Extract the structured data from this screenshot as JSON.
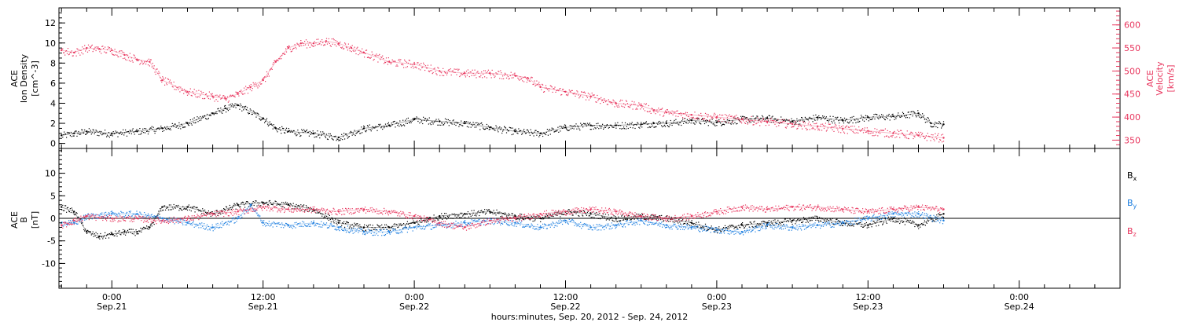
{
  "colors": {
    "black": "#000000",
    "pink": "#e8365e",
    "blue": "#1e7fe0",
    "background": "#ffffff"
  },
  "x_axis": {
    "label": "hours:minutes, Sep. 20, 2012 - Sep. 24, 2012",
    "range_hours": [
      19.8,
      104.0
    ],
    "ticks": [
      {
        "hours": 24,
        "time": "0:00",
        "date": "Sep.21"
      },
      {
        "hours": 36,
        "time": "12:00",
        "date": "Sep.21"
      },
      {
        "hours": 48,
        "time": "0:00",
        "date": "Sep.22"
      },
      {
        "hours": 60,
        "time": "12:00",
        "date": "Sep.22"
      },
      {
        "hours": 72,
        "time": "0:00",
        "date": "Sep.23"
      },
      {
        "hours": 84,
        "time": "12:00",
        "date": "Sep.23"
      },
      {
        "hours": 96,
        "time": "0:00",
        "date": "Sep.24"
      }
    ]
  },
  "chart_data": [
    {
      "type": "scatter",
      "panel": "top",
      "left_axis": {
        "label_lines": [
          "ACE",
          "Ion Density",
          "[cm^-3]"
        ],
        "ylim": [
          -0.5,
          13.5
        ],
        "ticks": [
          0,
          2,
          4,
          6,
          8,
          10,
          12
        ]
      },
      "right_axis": {
        "label_lines": [
          "ACE",
          "Velocity",
          "[km/s]"
        ],
        "ylim": [
          332,
          637
        ],
        "ticks": [
          350,
          400,
          450,
          500,
          550,
          600
        ]
      },
      "series": [
        {
          "axis": "left",
          "color": "#000000",
          "x_hours": [
            20.0,
            21.0,
            22.0,
            24.0,
            26.0,
            28.0,
            30.0,
            32.0,
            33.0,
            34.0,
            36.0,
            37.0,
            38.0,
            40.0,
            42.0,
            44.0,
            46.0,
            48.0,
            50.0,
            52.0,
            54.0,
            56.0,
            58.0,
            60.0,
            62.0,
            64.0,
            66.0,
            67.0,
            68.0,
            70.0,
            72.0,
            74.0,
            76.0,
            78.0,
            80.0,
            82.0,
            84.0,
            86.0,
            88.0,
            89.0,
            90.0
          ],
          "values": [
            0.8,
            1.0,
            1.2,
            1.0,
            1.2,
            1.5,
            2.0,
            3.0,
            3.5,
            3.8,
            2.5,
            1.5,
            1.2,
            1.0,
            0.6,
            1.5,
            1.8,
            2.4,
            2.2,
            2.0,
            1.6,
            1.2,
            1.0,
            1.6,
            1.8,
            1.8,
            1.9,
            2.0,
            2.0,
            2.3,
            2.1,
            2.4,
            2.5,
            2.2,
            2.6,
            2.3,
            2.6,
            2.7,
            3.0,
            2.0,
            1.9
          ]
        },
        {
          "axis": "right",
          "color": "#e8365e",
          "x_hours": [
            20.0,
            21.0,
            22.0,
            23.0,
            24.0,
            25.0,
            26.0,
            27.0,
            28.0,
            30.0,
            32.0,
            33.0,
            34.0,
            35.0,
            36.0,
            37.0,
            38.0,
            39.0,
            40.0,
            41.0,
            42.0,
            43.0,
            44.0,
            46.0,
            48.0,
            50.0,
            52.0,
            54.0,
            56.0,
            57.0,
            58.0,
            60.0,
            62.0,
            64.0,
            66.0,
            67.0,
            68.0,
            70.0,
            72.0,
            74.0,
            76.0,
            78.0,
            80.0,
            82.0,
            84.0,
            86.0,
            88.0,
            90.0
          ],
          "values": [
            545,
            540,
            550,
            548,
            545,
            535,
            525,
            520,
            480,
            455,
            445,
            440,
            450,
            465,
            480,
            520,
            550,
            560,
            560,
            565,
            560,
            550,
            540,
            520,
            515,
            500,
            495,
            495,
            490,
            485,
            465,
            455,
            445,
            430,
            425,
            415,
            410,
            405,
            400,
            395,
            390,
            385,
            380,
            375,
            370,
            365,
            360,
            355
          ]
        }
      ]
    },
    {
      "type": "scatter",
      "panel": "bottom",
      "left_axis": {
        "label_lines": [
          "ACE",
          "B",
          "[nT]"
        ],
        "ylim": [
          -15.5,
          15.5
        ],
        "ticks": [
          -10,
          -5,
          0,
          5,
          10
        ]
      },
      "legend": {
        "placement": "right",
        "entries": [
          {
            "base": "B",
            "sub": "x",
            "color": "#000000"
          },
          {
            "base": "B",
            "sub": "y",
            "color": "#1e7fe0"
          },
          {
            "base": "B",
            "sub": "z",
            "color": "#e8365e"
          }
        ]
      },
      "series": [
        {
          "name": "Bx",
          "color": "#000000",
          "x_hours": [
            20.0,
            21.0,
            22.0,
            23.0,
            24.0,
            25.0,
            26.0,
            27.0,
            28.0,
            30.0,
            32.0,
            34.0,
            36.0,
            38.0,
            40.0,
            42.0,
            44.0,
            46.0,
            48.0,
            50.0,
            52.0,
            54.0,
            56.0,
            58.0,
            60.0,
            62.0,
            64.0,
            66.0,
            68.0,
            70.0,
            72.0,
            74.0,
            76.0,
            78.0,
            80.0,
            82.0,
            84.0,
            86.0,
            88.0,
            90.0
          ],
          "values": [
            2.5,
            1.5,
            -3.0,
            -4.0,
            -3.5,
            -3.0,
            -3.0,
            -2.0,
            2.5,
            2.5,
            1.0,
            3.0,
            3.5,
            3.0,
            2.0,
            -1.0,
            -2.0,
            -2.0,
            -1.0,
            0.5,
            1.0,
            1.5,
            0.5,
            0.0,
            1.5,
            1.0,
            0.0,
            0.5,
            0.0,
            -1.0,
            -2.5,
            -1.5,
            -1.0,
            -0.5,
            0.0,
            -1.0,
            -1.5,
            0.0,
            -1.5,
            1.0
          ]
        },
        {
          "name": "By",
          "color": "#1e7fe0",
          "x_hours": [
            20.0,
            21.0,
            22.0,
            24.0,
            26.0,
            28.0,
            30.0,
            32.0,
            34.0,
            35.0,
            36.0,
            38.0,
            40.0,
            42.0,
            44.0,
            46.0,
            48.0,
            50.0,
            52.0,
            54.0,
            56.0,
            58.0,
            60.0,
            62.0,
            64.0,
            66.0,
            68.0,
            70.0,
            72.0,
            74.0,
            76.0,
            78.0,
            80.0,
            82.0,
            84.0,
            86.0,
            88.0,
            90.0
          ],
          "values": [
            -1.0,
            -1.0,
            0.5,
            1.0,
            1.0,
            0.0,
            -1.0,
            -2.0,
            0.0,
            3.0,
            -1.0,
            -1.5,
            -1.0,
            -2.0,
            -3.0,
            -3.0,
            -2.0,
            -1.5,
            -1.0,
            -0.5,
            -1.0,
            -2.0,
            -0.5,
            -2.0,
            -1.5,
            -0.5,
            -1.5,
            -2.0,
            -2.5,
            -3.0,
            -1.5,
            -2.0,
            -1.5,
            -1.0,
            0.0,
            1.0,
            1.0,
            -0.5
          ]
        },
        {
          "name": "Bz",
          "color": "#e8365e",
          "x_hours": [
            20.0,
            21.0,
            22.0,
            24.0,
            26.0,
            28.0,
            30.0,
            32.0,
            34.0,
            36.0,
            38.0,
            40.0,
            42.0,
            44.0,
            46.0,
            48.0,
            50.0,
            52.0,
            54.0,
            56.0,
            58.0,
            60.0,
            62.0,
            64.0,
            66.0,
            68.0,
            70.0,
            72.0,
            74.0,
            76.0,
            78.0,
            80.0,
            82.0,
            84.0,
            86.0,
            88.0,
            90.0
          ],
          "values": [
            -1.5,
            -0.5,
            0.5,
            0.0,
            0.0,
            -0.5,
            0.0,
            1.0,
            1.5,
            2.5,
            2.0,
            2.0,
            1.5,
            2.0,
            1.5,
            0.5,
            -1.0,
            -2.0,
            -0.5,
            0.0,
            1.0,
            1.5,
            2.0,
            1.5,
            0.5,
            0.0,
            0.5,
            1.5,
            2.5,
            2.0,
            2.5,
            2.5,
            2.0,
            1.5,
            2.0,
            2.5,
            2.0
          ]
        }
      ]
    }
  ]
}
